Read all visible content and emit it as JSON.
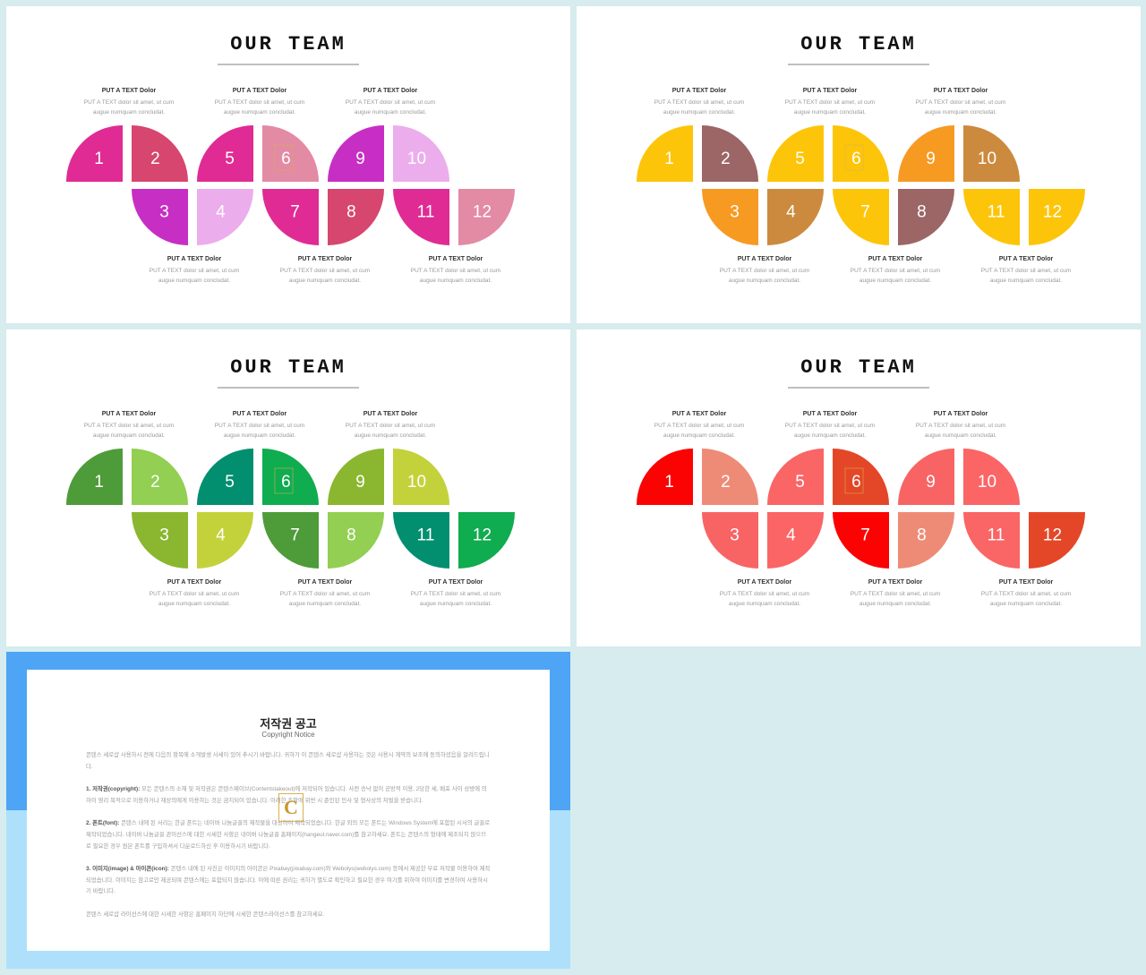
{
  "slides": [
    {
      "title": "OUR TEAM",
      "colors": [
        "#e02b94",
        "#d6466f",
        "#c72fc4",
        "#ecadec",
        "#e02b94",
        "#e38aa4",
        "#e02b94",
        "#d6466f",
        "#c72fc4",
        "#ecadec",
        "#e02b94",
        "#e38aa4"
      ]
    },
    {
      "title": "OUR TEAM",
      "colors": [
        "#fdc50a",
        "#9c6666",
        "#f79a22",
        "#cc8a3e",
        "#fdc50a",
        "#fdc50a",
        "#fdc50a",
        "#9c6666",
        "#f79a22",
        "#cc8a3e",
        "#fdc50a",
        "#fdc50a"
      ]
    },
    {
      "title": "OUR TEAM",
      "colors": [
        "#4e9b3a",
        "#92cf52",
        "#8ab72f",
        "#c3d23a",
        "#028f6f",
        "#10ac50",
        "#4e9b3a",
        "#92cf52",
        "#8ab72f",
        "#c3d23a",
        "#028f6f",
        "#10ac50"
      ]
    },
    {
      "title": "OUR TEAM",
      "colors": [
        "#fc0303",
        "#ee8b77",
        "#f86464",
        "#fb6565",
        "#fa6565",
        "#e44727",
        "#fc0303",
        "#ee8b77",
        "#f86464",
        "#fb6565",
        "#fa6565",
        "#e44727"
      ]
    }
  ],
  "segment_numbers": [
    "1",
    "2",
    "3",
    "4",
    "5",
    "6",
    "7",
    "8",
    "9",
    "10",
    "11",
    "12"
  ],
  "caption": {
    "heading": "PUT A TEXT Dolor",
    "line1": "PUT A TEXT dolor sit amet, ut cum",
    "line2": "augue numquam concludat."
  },
  "watermark_letter": "C",
  "notice": {
    "title": "저작권 공고",
    "subtitle": "Copyright Notice",
    "intro": "콘텐스 세로샵 사용하시 전에 다음의 항목에 소개발생 사세이 있어 추시기 바랍니다. 귀하가 이 콘텐스 세로샵 사용하는 것은 사용시 계약의 보조에 동의하셨음을 알려드립니다.",
    "p1_label": "1. 저작권(copyright):",
    "p1": "모든 콘텐스의 소재 및 저작권은 콘텐스웨이브(Contentstakeout)에 저작되어 있습니다. 사전 승낙 없이 공방적 이용, 2당한 세, 배포 사이 상방에 의하이 영리 목적으로 이용하거나 재상의에게 이용하는 것은 금지되어 있습니다. 이러한 조항에 위반 시 준인된 민사 및 형사상의 처벌을 받습니다.",
    "p2_label": "2. 폰트(font):",
    "p2": "콘텐스 내에 된 서리는 한글 폰트는 네이버 나눔글꼴의 제작물을 대상하여 제작되었습니다. 한글 외의 모든 폰트는 Windows System에 포함된 시서의 글꼴로 제작되었습니다. 네이버 나눔글꼴 관이선스에 대한 시세한 사항은 네이버 나눔글꼴 홈페이지(hangeul.naver.com)를 참고하세요. 폰트는 콘텐스의 형태에 제조되지 않으므로 필요한 경우 원본 폰트를 구입하셔서 다운로드하신 후 이용하시기 바랍니다.",
    "p3_label": "3. 이미지(image) & 아이콘(icon):",
    "p3": "콘텐스 내에 된 사진은 이미지의 아이콘은 Pixabay(pixabay.com)와 Webolys(webolys.com) 등에서 제공한 무료 저작물 이용하여 제작되었습니다. 이미지는 참고로만 제공되며 콘텐스에는 포함되지 않습니다. 이에 따른 권리는 귀하가 별도로 확인하고 필요한 경우 여기를 위하여 이미지를 변경하여 사용하시기 바랍니다.",
    "outro": "콘텐스 세로샵 라이선스에 대한 시세한 사항은 홈페이지 하단에 시세한 콘텐스라이선스를 참고하세요."
  }
}
